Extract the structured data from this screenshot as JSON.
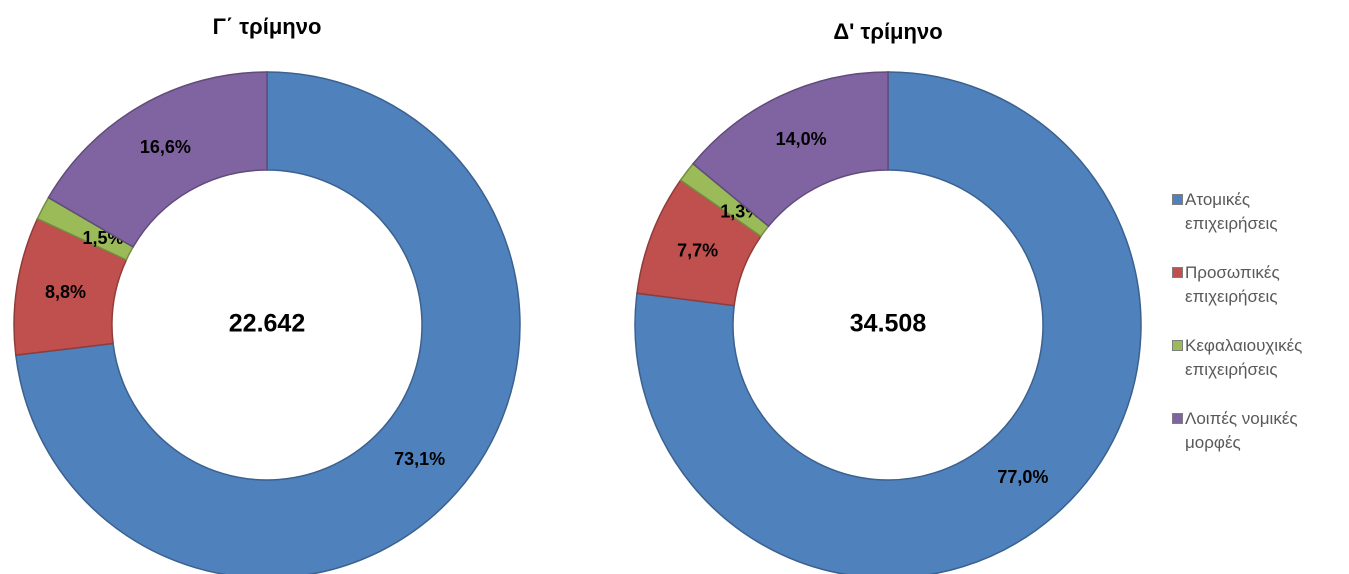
{
  "chart_data": [
    {
      "type": "donut",
      "title": "Γ΄ τρίμηνο",
      "center_label": "22.642",
      "values": [
        73.1,
        8.8,
        1.5,
        16.6
      ],
      "value_labels": [
        "73,1%",
        "8,8%",
        "1,5%",
        "16,6%"
      ]
    },
    {
      "type": "donut",
      "title": "Δ' τρίμηνο",
      "center_label": "34.508",
      "values": [
        77.0,
        7.7,
        1.3,
        14.0
      ],
      "value_labels": [
        "77,0%",
        "7,7%",
        "1,3%",
        "14,0%"
      ]
    }
  ],
  "legend": {
    "labels": [
      "Ατομικές επιχειρήσεις",
      "Προσωπικές επιχειρήσεις",
      "Κεφαλαιουχικές επιχειρήσεις",
      "Λοιπές νομικές μορφές"
    ],
    "colors": [
      "#4f81bd",
      "#c0504d",
      "#9bbb59",
      "#8064a2"
    ]
  }
}
